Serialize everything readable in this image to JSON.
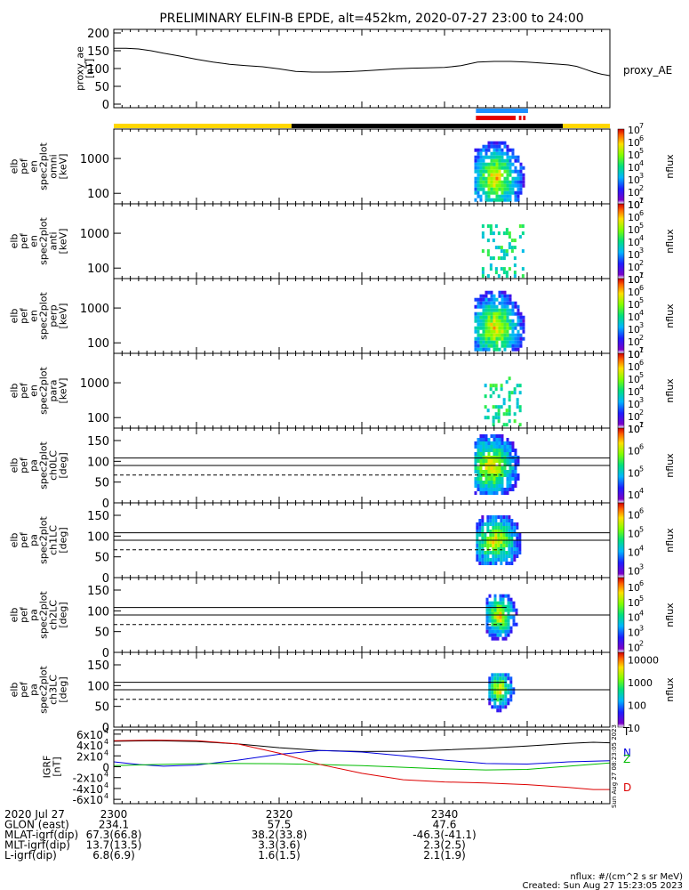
{
  "title": "PRELIMINARY ELFIN-B EPDE, alt=452km, 2020-07-27 23:00 to 24:00",
  "time_range_min": [
    0,
    60
  ],
  "colors": {
    "panel_line": "#000000",
    "sun": "#ffd700",
    "shadow": "#000000",
    "blue_bar": "#1e90ff",
    "red_bar": "#e60000"
  },
  "chart_data": [
    {
      "type": "line",
      "id": "proxy_ae",
      "ylabel": [
        "proxy_ae",
        "[nT]"
      ],
      "legend": "proxy_AE",
      "ylim": [
        -10,
        210
      ],
      "yticks": [
        "0",
        "50",
        "100",
        "150",
        "200"
      ],
      "ytick_values": [
        0,
        50,
        100,
        150,
        200
      ],
      "x": [
        0,
        1.5,
        3,
        4.5,
        6,
        8,
        10,
        12,
        14,
        16,
        18,
        20,
        22,
        24,
        26,
        28,
        30,
        32,
        34,
        36,
        38,
        40,
        42,
        44,
        46,
        48,
        50,
        52,
        54,
        55,
        56,
        57,
        58,
        59,
        60
      ],
      "y": [
        157,
        157,
        155,
        150,
        143,
        135,
        126,
        118,
        112,
        108,
        105,
        99,
        92,
        90,
        90,
        91,
        93,
        96,
        99,
        101,
        102,
        103,
        108,
        118,
        120,
        120,
        118,
        115,
        112,
        110,
        106,
        98,
        90,
        84,
        80
      ]
    },
    {
      "type": "bar",
      "id": "sunlight_bar",
      "segments": [
        {
          "start_min": 0,
          "end_min": 21.5,
          "state": "sunlight"
        },
        {
          "start_min": 21.5,
          "end_min": 54.3,
          "state": "shadow"
        },
        {
          "start_min": 54.3,
          "end_min": 60,
          "state": "sunlight"
        }
      ]
    },
    {
      "type": "bar",
      "id": "science_zones",
      "blue": [
        {
          "start_min": 43.8,
          "end_min": 50.1
        }
      ],
      "red": [
        {
          "start_min": 43.8,
          "end_min": 48.6
        },
        {
          "start_min": 49.0,
          "end_min": 49.3
        },
        {
          "start_min": 49.5,
          "end_min": 49.8
        }
      ]
    },
    {
      "type": "heatmap",
      "id": "omni",
      "ylabel": [
        "elb",
        "pef",
        "en",
        "spec2plot",
        "omni",
        "[keV]"
      ],
      "ytick_labels": [
        "1000",
        "100"
      ],
      "ytick_values": [
        1000,
        100
      ],
      "ylog_range": [
        50,
        7000
      ],
      "zlabel": "nflux",
      "ztick_labels": [
        "10",
        "10",
        "10",
        "10",
        "10",
        "10",
        "10"
      ],
      "ztick_exponents": [
        "7",
        "6",
        "5",
        "4",
        "3",
        "2",
        "1"
      ],
      "z_range_log": [
        1,
        7
      ],
      "blobs": [
        {
          "t0": 43.6,
          "t1": 49.8,
          "e0": 60,
          "e1": 5000,
          "peak_t": 46.0,
          "peak_e": 300,
          "level": 5.6
        }
      ]
    },
    {
      "type": "heatmap",
      "id": "anti",
      "ylabel": [
        "elb",
        "pef",
        "en",
        "spec2plot",
        "anti",
        "[keV]"
      ],
      "ytick_labels": [
        "1000",
        "100"
      ],
      "ytick_values": [
        1000,
        100
      ],
      "ylog_range": [
        50,
        7000
      ],
      "zlabel": "nflux",
      "ztick_labels": [
        "10",
        "10",
        "10",
        "10",
        "10",
        "10",
        "10"
      ],
      "ztick_exponents": [
        "7",
        "6",
        "5",
        "4",
        "3",
        "2",
        "1"
      ],
      "z_range_log": [
        1,
        7
      ],
      "blobs": [
        {
          "t0": 44.5,
          "t1": 49.5,
          "e0": 60,
          "e1": 1800,
          "peak_t": 46.5,
          "peak_e": 120,
          "level": 4.2,
          "sparse": true
        }
      ]
    },
    {
      "type": "heatmap",
      "id": "perp",
      "ylabel": [
        "elb",
        "pef",
        "en",
        "spec2plot",
        "perp",
        "[keV]"
      ],
      "ytick_labels": [
        "1000",
        "100"
      ],
      "ytick_values": [
        1000,
        100
      ],
      "ylog_range": [
        50,
        7000
      ],
      "zlabel": "nflux",
      "ztick_labels": [
        "10",
        "10",
        "10",
        "10",
        "10",
        "10",
        "10"
      ],
      "ztick_exponents": [
        "7",
        "6",
        "5",
        "4",
        "3",
        "2",
        "1"
      ],
      "z_range_log": [
        1,
        7
      ],
      "blobs": [
        {
          "t0": 43.6,
          "t1": 49.8,
          "e0": 60,
          "e1": 5000,
          "peak_t": 46.0,
          "peak_e": 300,
          "level": 5.6
        }
      ]
    },
    {
      "type": "heatmap",
      "id": "para",
      "ylabel": [
        "elb",
        "pef",
        "en",
        "spec2plot",
        "para",
        "[keV]"
      ],
      "ytick_labels": [
        "1000",
        "100"
      ],
      "ytick_values": [
        1000,
        100
      ],
      "ylog_range": [
        50,
        7000
      ],
      "zlabel": "nflux",
      "ztick_labels": [
        "10",
        "10",
        "10",
        "10",
        "10",
        "10",
        "10"
      ],
      "ztick_exponents": [
        "7",
        "6",
        "5",
        "4",
        "3",
        "2",
        "1"
      ],
      "z_range_log": [
        1,
        7
      ],
      "blobs": [
        {
          "t0": 44.8,
          "t1": 49.2,
          "e0": 60,
          "e1": 1500,
          "peak_t": 46.5,
          "peak_e": 120,
          "level": 4.2,
          "sparse": true
        }
      ]
    },
    {
      "type": "heatmap",
      "id": "ch0LC",
      "ylabel": [
        "elb",
        "pef",
        "pa",
        "spec2plot",
        "ch0LC",
        "[deg]"
      ],
      "yticks": [
        "0",
        "50",
        "100",
        "150"
      ],
      "ytick_values": [
        0,
        50,
        100,
        150
      ],
      "ylim": [
        0,
        180
      ],
      "zlabel": "nflux",
      "ztick_labels": [
        "10",
        "10",
        "10",
        "10"
      ],
      "ztick_exponents": [
        "7",
        "6",
        "5",
        "4"
      ],
      "z_range_log": [
        3.6,
        7
      ],
      "ref_lines": [
        {
          "y": 108,
          "style": "solid",
          "t1": 60
        },
        {
          "y": 90,
          "style": "solid",
          "t1": 60
        },
        {
          "y": 67,
          "style": "dashed",
          "t1": 47.0
        }
      ],
      "blobs": [
        {
          "t0": 43.6,
          "t1": 49.8,
          "e0": 20,
          "e1": 165,
          "peak_t": 45.5,
          "peak_e": 92,
          "level": 5.0
        }
      ]
    },
    {
      "type": "heatmap",
      "id": "ch1LC",
      "ylabel": [
        "elb",
        "pef",
        "pa",
        "spec2plot",
        "ch1LC",
        "[deg]"
      ],
      "yticks": [
        "0",
        "50",
        "100",
        "150"
      ],
      "ytick_values": [
        0,
        50,
        100,
        150
      ],
      "ylim": [
        0,
        180
      ],
      "zlabel": "nflux",
      "ztick_labels": [
        "10",
        "10",
        "10",
        "10"
      ],
      "ztick_exponents": [
        "6",
        "5",
        "4",
        "3"
      ],
      "z_range_log": [
        2.6,
        6.6
      ],
      "ref_lines": [
        {
          "y": 108,
          "style": "solid",
          "t1": 60
        },
        {
          "y": 90,
          "style": "solid",
          "t1": 60
        },
        {
          "y": 67,
          "style": "dashed",
          "t1": 47.0
        }
      ],
      "blobs": [
        {
          "t0": 43.8,
          "t1": 49.5,
          "e0": 30,
          "e1": 150,
          "peak_t": 46.0,
          "peak_e": 92,
          "level": 4.6
        }
      ]
    },
    {
      "type": "heatmap",
      "id": "ch2LC",
      "ylabel": [
        "elb",
        "pef",
        "pa",
        "spec2plot",
        "ch2LC",
        "[deg]"
      ],
      "yticks": [
        "0",
        "50",
        "100",
        "150"
      ],
      "ytick_values": [
        0,
        50,
        100,
        150
      ],
      "ylim": [
        0,
        180
      ],
      "zlabel": "nflux",
      "ztick_labels": [
        "10",
        "10",
        "10",
        "10",
        "10"
      ],
      "ztick_exponents": [
        "6",
        "5",
        "4",
        "3",
        "2"
      ],
      "z_range_log": [
        1.6,
        6.6
      ],
      "ref_lines": [
        {
          "y": 108,
          "style": "solid",
          "t1": 47.5
        },
        {
          "y": 90,
          "style": "solid",
          "t1": 60
        },
        {
          "y": 67,
          "style": "dashed",
          "t1": 47.0
        }
      ],
      "blobs": [
        {
          "t0": 45.0,
          "t1": 48.8,
          "e0": 35,
          "e1": 140,
          "peak_t": 46.5,
          "peak_e": 92,
          "level": 5.6
        }
      ]
    },
    {
      "type": "heatmap",
      "id": "ch3LC",
      "ylabel": [
        "elb",
        "pef",
        "pa",
        "spec2plot",
        "ch3LC",
        "[deg]"
      ],
      "yticks": [
        "0",
        "50",
        "100",
        "150"
      ],
      "ytick_values": [
        0,
        50,
        100,
        150
      ],
      "ylim": [
        0,
        180
      ],
      "zlabel": "nflux",
      "ztick_labels": [
        "10000",
        "1000",
        "100",
        "10"
      ],
      "ztick_values_log": [
        4,
        3,
        2,
        1
      ],
      "z_range_log": [
        1,
        4.3
      ],
      "ref_lines": [
        {
          "y": 108,
          "style": "solid",
          "t1": 47.5
        },
        {
          "y": 90,
          "style": "solid",
          "t1": 60
        },
        {
          "y": 67,
          "style": "dashed",
          "t1": 47.0
        }
      ],
      "blobs": [
        {
          "t0": 45.3,
          "t1": 48.4,
          "e0": 40,
          "e1": 130,
          "peak_t": 46.5,
          "peak_e": 95,
          "level": 3.6
        }
      ]
    },
    {
      "type": "line",
      "id": "igrf",
      "ylabel": [
        "IGRF",
        "[nT]"
      ],
      "ylim": [
        -68000,
        68000
      ],
      "ytick_values": [
        60000,
        40000,
        20000,
        0,
        -20000,
        -40000,
        -60000
      ],
      "ytick_mantissa": [
        "6",
        "4",
        "2",
        "0",
        "-2",
        "-4",
        "-6"
      ],
      "ytick_base": "x10",
      "ytick_exponent": "4",
      "vertical_note": "Sun Aug 27 08:23:05 2023",
      "series": [
        {
          "name": "T",
          "color": "#000000",
          "x": [
            0,
            5,
            10,
            15,
            20,
            25,
            30,
            35,
            40,
            45,
            50,
            55,
            58,
            60
          ],
          "y": [
            47000,
            48000,
            46500,
            42000,
            35000,
            30000,
            28000,
            28500,
            31000,
            34000,
            38000,
            43000,
            45000,
            44000
          ]
        },
        {
          "name": "N",
          "color": "#0000dd",
          "x": [
            0,
            3,
            6,
            10,
            15,
            20,
            25,
            30,
            35,
            40,
            45,
            50,
            55,
            60
          ],
          "y": [
            9000,
            4000,
            1000,
            3000,
            12000,
            23000,
            30000,
            27000,
            20000,
            12000,
            6000,
            5000,
            9000,
            11000
          ]
        },
        {
          "name": "Z",
          "color": "#00bb00",
          "x": [
            0,
            5,
            10,
            15,
            20,
            25,
            30,
            35,
            40,
            45,
            50,
            55,
            60
          ],
          "y": [
            2000,
            4000,
            5500,
            6000,
            5500,
            4000,
            2000,
            -1000,
            -4000,
            -6000,
            -5000,
            1000,
            7000
          ]
        },
        {
          "name": "D",
          "color": "#dd0000",
          "x": [
            0,
            5,
            10,
            15,
            20,
            25,
            30,
            35,
            40,
            45,
            50,
            55,
            58,
            60
          ],
          "y": [
            48000,
            49000,
            48000,
            42000,
            25000,
            4000,
            -12000,
            -24000,
            -28000,
            -30000,
            -33000,
            -38000,
            -42000,
            -42000
          ]
        }
      ]
    }
  ],
  "bottom_axis": {
    "rows": [
      {
        "label": "2020 Jul 27",
        "values": [
          "2300",
          "2320",
          "2340"
        ]
      },
      {
        "label": "GLON (east)",
        "values": [
          "234.1",
          "57.5",
          "47.6"
        ]
      },
      {
        "label": "MLAT-igrf(dip)",
        "values": [
          "67.3(66.8)",
          "38.2(33.8)",
          "-46.3(-41.1)"
        ]
      },
      {
        "label": "MLT-igrf(dip)",
        "values": [
          "13.7(13.5)",
          "3.3(3.6)",
          "2.3(2.5)"
        ]
      },
      {
        "label": "L-igrf(dip)",
        "values": [
          "6.8(6.9)",
          "1.6(1.5)",
          "2.1(1.9)"
        ]
      }
    ],
    "tick_times_min": [
      0,
      20,
      40
    ]
  },
  "footer": {
    "units": "nflux: #/(cm^2 s sr MeV)",
    "created": "Created: Sun Aug 27 15:23:05 2023"
  }
}
